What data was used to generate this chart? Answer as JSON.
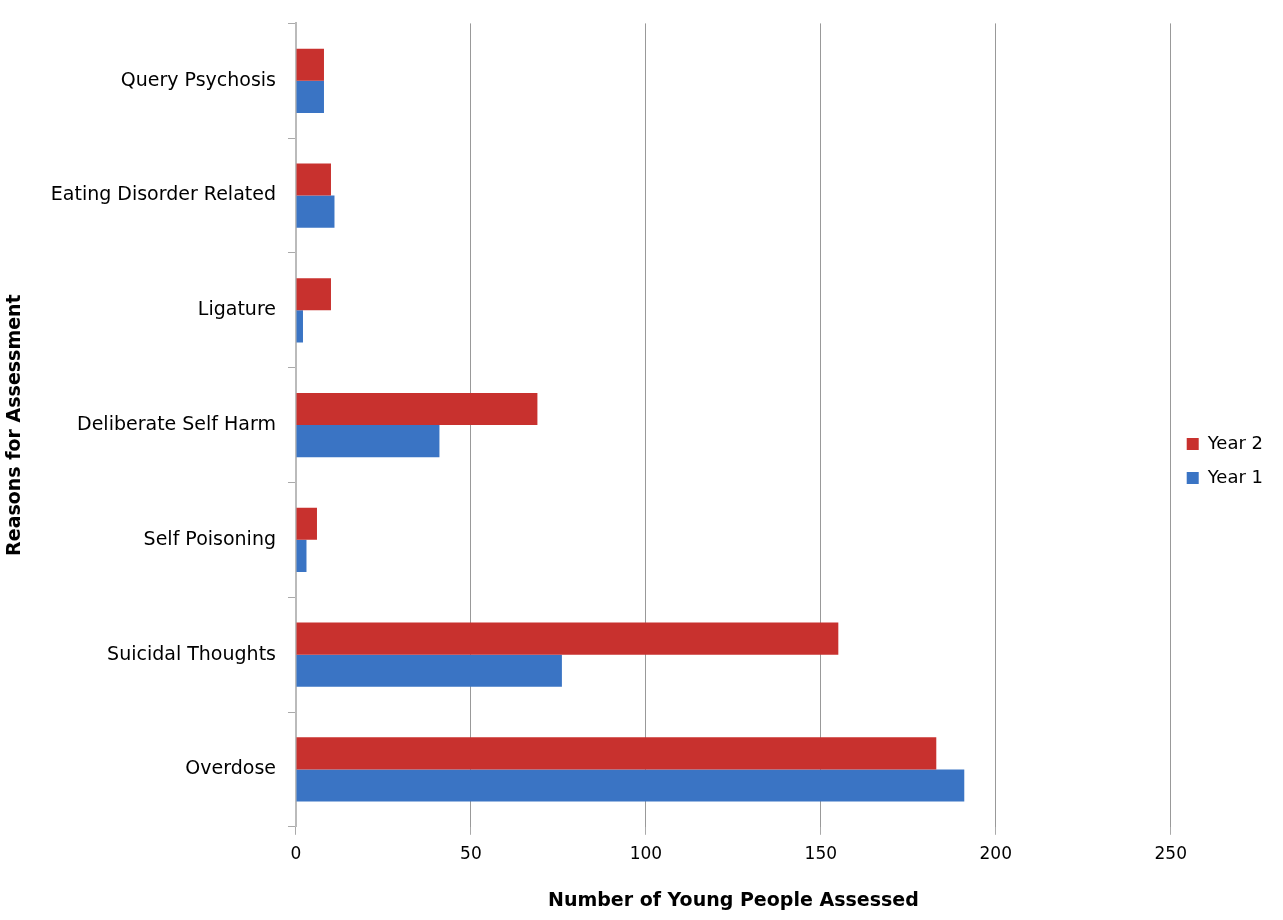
{
  "chart_data": {
    "type": "bar",
    "orientation": "horizontal",
    "xlabel": "Number of Young People Assessed",
    "ylabel": "Reasons for Assessment",
    "categories": [
      "Query Psychosis",
      "Eating Disorder Related",
      "Ligature",
      "Deliberate Self Harm",
      "Self Poisoning",
      "Suicidal Thoughts",
      "Overdose"
    ],
    "series": [
      {
        "name": "Year 2",
        "color": "#c8312e",
        "values": [
          8,
          10,
          10,
          69,
          6,
          155,
          183
        ]
      },
      {
        "name": "Year 1",
        "color": "#3a74c4",
        "values": [
          8,
          11,
          2,
          41,
          3,
          76,
          191
        ]
      }
    ],
    "xlim": [
      0,
      250
    ],
    "xticks": [
      0,
      50,
      100,
      150,
      200,
      250
    ],
    "grid": "x",
    "legend": "right"
  }
}
